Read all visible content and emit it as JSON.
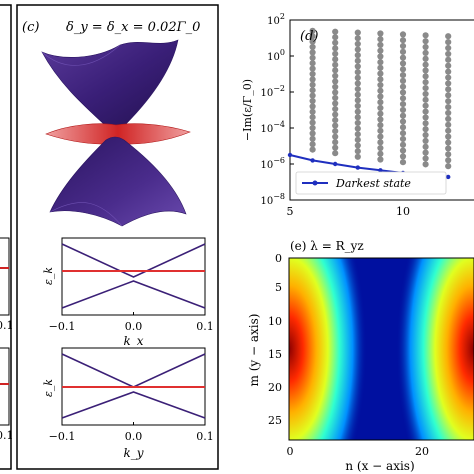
{
  "panel_c": {
    "label": "(c)",
    "title": "δ_y = δ_x = 0.02Γ_0",
    "subplot_top": {
      "ylabel": "ε_k",
      "xlabel": "k_x",
      "xticks": [
        "−0.1",
        "0.0",
        "0.1"
      ]
    },
    "subplot_bottom": {
      "ylabel": "ε_k",
      "xlabel": "k_y",
      "xticks": [
        "−0.1",
        "0.0",
        "0.1"
      ]
    }
  },
  "panel_d": {
    "label": "(d)",
    "ylabel": "−Im(ε/Γ_0)",
    "yticks": [
      "10^2",
      "10^0",
      "10^−2",
      "10^−4",
      "10^−6",
      "10^−8"
    ],
    "xticks": [
      "5",
      "10"
    ],
    "legend": "Darkest state"
  },
  "panel_e": {
    "label": "(e) λ = R_yz",
    "ylabel": "m (y − axis)",
    "xlabel": "n (x − axis)",
    "yticks": [
      "0",
      "5",
      "10",
      "15",
      "20",
      "25"
    ],
    "xticks": [
      "0",
      "20"
    ],
    "right_ticks": [
      "5",
      "10",
      "15",
      "20",
      "25"
    ]
  },
  "left_partial": {
    "xticks": [
      "0.1",
      "0.1"
    ]
  },
  "chart_data": {
    "type": "scatter",
    "xlim": [
      5,
      12
    ],
    "ylim_log10": [
      -8,
      2
    ],
    "darkest_state": {
      "x": [
        5,
        6,
        7,
        8,
        9,
        10,
        11,
        12
      ],
      "y_log10": [
        -5.5,
        -5.8,
        -6.0,
        -6.2,
        -6.35,
        -6.5,
        -6.62,
        -6.72
      ]
    }
  },
  "colors": {
    "dark_band": "#3b2077",
    "flat_band": "#e03030",
    "darkest": "#1f2fbf",
    "gray_dots": "#8a8a8a"
  }
}
